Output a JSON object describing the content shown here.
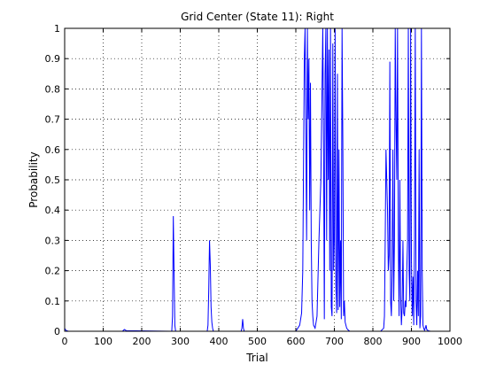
{
  "chart_data": {
    "type": "line",
    "title": "Grid Center (State 11): Right",
    "xlabel": "Trial",
    "ylabel": "Probability",
    "xlim": [
      0,
      1000
    ],
    "ylim": [
      0,
      1
    ],
    "xticks": [
      0,
      100,
      200,
      300,
      400,
      500,
      600,
      700,
      800,
      900,
      1000
    ],
    "yticks": [
      0,
      0.1,
      0.2,
      0.3,
      0.4,
      0.5,
      0.6,
      0.7,
      0.8,
      0.9,
      1
    ],
    "grid": true,
    "line_color": "#0000ff",
    "series": [
      {
        "x": [
          0,
          2,
          5,
          10,
          150,
          155,
          160,
          278,
          280,
          282,
          284,
          286,
          288,
          370,
          372,
          374,
          376,
          378,
          380,
          382,
          384,
          386,
          458,
          460,
          462,
          464,
          466,
          468,
          600,
          605,
          610,
          615,
          618,
          620,
          622,
          624,
          626,
          628,
          630,
          632,
          634,
          636,
          638,
          640,
          642,
          644,
          646,
          650,
          655,
          660,
          665,
          668,
          670,
          672,
          674,
          676,
          678,
          680,
          682,
          684,
          686,
          688,
          690,
          692,
          694,
          696,
          698,
          700,
          702,
          704,
          706,
          708,
          710,
          712,
          714,
          716,
          718,
          720,
          722,
          724,
          726,
          728,
          730,
          732,
          735,
          740,
          760,
          800,
          820,
          828,
          830,
          832,
          834,
          836,
          838,
          840,
          842,
          844,
          846,
          848,
          850,
          852,
          854,
          856,
          858,
          860,
          862,
          864,
          866,
          868,
          870,
          872,
          874,
          876,
          878,
          880,
          882,
          884,
          886,
          888,
          890,
          892,
          894,
          896,
          898,
          900,
          902,
          904,
          906,
          908,
          910,
          912,
          914,
          916,
          918,
          920,
          922,
          924,
          926,
          928,
          930,
          932,
          934,
          936,
          938,
          940,
          945,
          950,
          960,
          1000
        ],
        "y": [
          0.01,
          0.005,
          0.002,
          0,
          0,
          0.006,
          0.002,
          0,
          0.05,
          0.38,
          0.19,
          0.02,
          0,
          0,
          0.02,
          0.14,
          0.3,
          0.22,
          0.08,
          0.03,
          0.01,
          0,
          0,
          0.01,
          0.04,
          0.01,
          0,
          0,
          0,
          0.01,
          0.02,
          0.06,
          0.2,
          0.55,
          0.9,
          1,
          0.65,
          0.3,
          1,
          0.7,
          0.9,
          0.4,
          0.82,
          0.3,
          0.1,
          0.05,
          0.02,
          0.01,
          0.05,
          0.3,
          0.5,
          0.8,
          1,
          0.62,
          0.04,
          0.85,
          1,
          0.3,
          1,
          0.5,
          0.93,
          0.2,
          1,
          0.08,
          0.05,
          0.95,
          0.2,
          0.3,
          1,
          0.15,
          0.06,
          0.85,
          0.07,
          0.6,
          0.08,
          0.3,
          0.04,
          1,
          0.63,
          0.05,
          0.1,
          0.03,
          0.02,
          0.01,
          0.005,
          0,
          0,
          0,
          0,
          0.01,
          0.05,
          0.3,
          0.6,
          0.5,
          0.4,
          0.2,
          0.25,
          0.89,
          0.1,
          0.05,
          0.2,
          0.6,
          0.1,
          0.3,
          1,
          0.7,
          0.5,
          1,
          0.3,
          0.05,
          0.5,
          0.12,
          0.02,
          0.08,
          0.3,
          0.06,
          0.05,
          0.1,
          0.08,
          0.2,
          0.3,
          1,
          0.2,
          0.1,
          1,
          0.25,
          0.05,
          0.18,
          0.02,
          0.3,
          1,
          0.1,
          0.02,
          0.2,
          0.05,
          0.6,
          0.01,
          0.05,
          1,
          0.2,
          0.02,
          0.01,
          0.003,
          0.01,
          0.02,
          0.005,
          0.001,
          0,
          0,
          0
        ]
      }
    ]
  }
}
